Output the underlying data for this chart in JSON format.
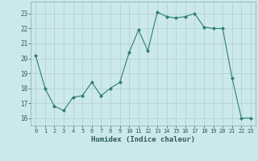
{
  "x": [
    0,
    1,
    2,
    3,
    4,
    5,
    6,
    7,
    8,
    9,
    10,
    11,
    12,
    13,
    14,
    15,
    16,
    17,
    18,
    19,
    20,
    21,
    22,
    23
  ],
  "y": [
    20.2,
    18.0,
    16.8,
    16.5,
    17.4,
    17.5,
    18.4,
    17.5,
    18.0,
    18.4,
    20.4,
    21.9,
    20.5,
    23.1,
    22.8,
    22.7,
    22.8,
    23.0,
    22.1,
    22.0,
    22.0,
    18.7,
    16.0,
    16.0
  ],
  "line_color": "#2e7d72",
  "marker": "D",
  "marker_size": 2.0,
  "bg_color": "#cce9e9",
  "grid_color": "#b0cfcf",
  "xlabel": "Humidex (Indice chaleur)",
  "ylabel_ticks": [
    16,
    17,
    18,
    19,
    20,
    21,
    22,
    23
  ],
  "ylim": [
    15.5,
    23.8
  ],
  "xlim": [
    -0.5,
    23.5
  ]
}
